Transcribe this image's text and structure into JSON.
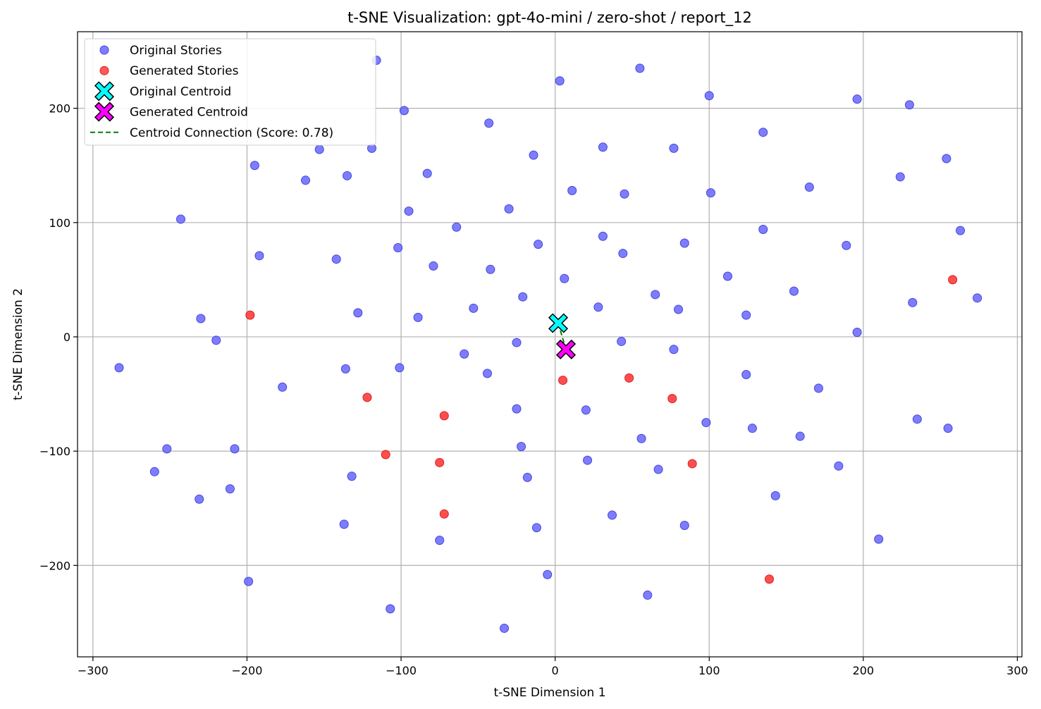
{
  "chart_data": {
    "type": "scatter",
    "title": "t-SNE Visualization: gpt-4o-mini / zero-shot / report_12",
    "xlabel": "t-SNE Dimension 1",
    "ylabel": "t-SNE Dimension 2",
    "xlim": [
      -310,
      303
    ],
    "ylim": [
      -280,
      267
    ],
    "xticks": [
      -300,
      -200,
      -100,
      0,
      100,
      200,
      300
    ],
    "yticks": [
      -200,
      -100,
      0,
      100,
      200
    ],
    "xtick_labels": [
      "−300",
      "−200",
      "−100",
      "0",
      "100",
      "200",
      "300"
    ],
    "ytick_labels": [
      "−200",
      "−100",
      "0",
      "100",
      "200"
    ],
    "grid": true,
    "legend_position": "top-left",
    "colors": {
      "original": "#6666ff",
      "generated": "#ff3b3b",
      "original_centroid": "#00ffff",
      "generated_centroid": "#ff00ff",
      "connection": "#008000"
    },
    "series": [
      {
        "name": "Original Stories",
        "marker": "circle",
        "points": [
          [
            -116,
            242
          ],
          [
            3,
            224
          ],
          [
            55,
            235
          ],
          [
            100,
            211
          ],
          [
            196,
            208
          ],
          [
            230,
            203
          ],
          [
            -98,
            198
          ],
          [
            -43,
            187
          ],
          [
            135,
            179
          ],
          [
            -153,
            164
          ],
          [
            -119,
            165
          ],
          [
            -14,
            159
          ],
          [
            31,
            166
          ],
          [
            77,
            165
          ],
          [
            254,
            156
          ],
          [
            -195,
            150
          ],
          [
            -135,
            141
          ],
          [
            -83,
            143
          ],
          [
            -162,
            137
          ],
          [
            11,
            128
          ],
          [
            45,
            125
          ],
          [
            101,
            126
          ],
          [
            165,
            131
          ],
          [
            224,
            140
          ],
          [
            -243,
            103
          ],
          [
            -95,
            110
          ],
          [
            -30,
            112
          ],
          [
            -64,
            96
          ],
          [
            135,
            94
          ],
          [
            263,
            93
          ],
          [
            -11,
            81
          ],
          [
            31,
            88
          ],
          [
            84,
            82
          ],
          [
            189,
            80
          ],
          [
            -102,
            78
          ],
          [
            -192,
            71
          ],
          [
            -142,
            68
          ],
          [
            44,
            73
          ],
          [
            -79,
            62
          ],
          [
            -42,
            59
          ],
          [
            6,
            51
          ],
          [
            112,
            53
          ],
          [
            155,
            40
          ],
          [
            65,
            37
          ],
          [
            -21,
            35
          ],
          [
            28,
            26
          ],
          [
            80,
            24
          ],
          [
            124,
            19
          ],
          [
            232,
            30
          ],
          [
            274,
            34
          ],
          [
            -128,
            21
          ],
          [
            -53,
            25
          ],
          [
            -89,
            17
          ],
          [
            -230,
            16
          ],
          [
            -220,
            -3
          ],
          [
            196,
            4
          ],
          [
            -25,
            -5
          ],
          [
            43,
            -4
          ],
          [
            77,
            -11
          ],
          [
            -59,
            -15
          ],
          [
            -101,
            -27
          ],
          [
            -136,
            -28
          ],
          [
            -44,
            -32
          ],
          [
            -283,
            -27
          ],
          [
            124,
            -33
          ],
          [
            -177,
            -44
          ],
          [
            171,
            -45
          ],
          [
            -25,
            -63
          ],
          [
            20,
            -64
          ],
          [
            98,
            -75
          ],
          [
            128,
            -80
          ],
          [
            235,
            -72
          ],
          [
            255,
            -80
          ],
          [
            56,
            -89
          ],
          [
            159,
            -87
          ],
          [
            -22,
            -96
          ],
          [
            -252,
            -98
          ],
          [
            -208,
            -98
          ],
          [
            21,
            -108
          ],
          [
            67,
            -116
          ],
          [
            184,
            -113
          ],
          [
            -260,
            -118
          ],
          [
            -132,
            -122
          ],
          [
            -18,
            -123
          ],
          [
            -211,
            -133
          ],
          [
            -231,
            -142
          ],
          [
            143,
            -139
          ],
          [
            37,
            -156
          ],
          [
            -137,
            -164
          ],
          [
            -12,
            -167
          ],
          [
            84,
            -165
          ],
          [
            -75,
            -178
          ],
          [
            210,
            -177
          ],
          [
            -199,
            -214
          ],
          [
            -5,
            -208
          ],
          [
            60,
            -226
          ],
          [
            -107,
            -238
          ],
          [
            -33,
            -255
          ]
        ]
      },
      {
        "name": "Generated Stories",
        "marker": "circle",
        "points": [
          [
            -198,
            19
          ],
          [
            258,
            50
          ],
          [
            -122,
            -53
          ],
          [
            -72,
            -69
          ],
          [
            5,
            -38
          ],
          [
            48,
            -36
          ],
          [
            76,
            -54
          ],
          [
            -110,
            -103
          ],
          [
            -75,
            -110
          ],
          [
            89,
            -111
          ],
          [
            -72,
            -155
          ],
          [
            139,
            -212
          ]
        ]
      },
      {
        "name": "Original Centroid",
        "marker": "X",
        "points": [
          [
            2,
            12
          ]
        ]
      },
      {
        "name": "Generated Centroid",
        "marker": "X",
        "points": [
          [
            7,
            -11
          ]
        ]
      }
    ],
    "lines": [
      {
        "name": "Centroid Connection (Score: 0.78)",
        "style": "dashed",
        "points": [
          [
            2,
            12
          ],
          [
            7,
            -11
          ]
        ]
      }
    ]
  }
}
